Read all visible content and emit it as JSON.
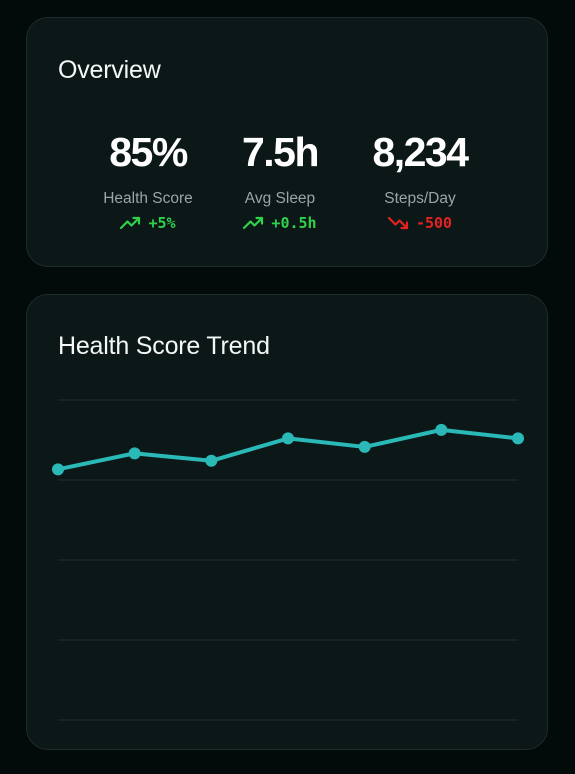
{
  "overview": {
    "title": "Overview",
    "stats": [
      {
        "value": "85%",
        "label": "Health Score",
        "change": "+5%",
        "direction": "up",
        "icon": "trend-up-icon"
      },
      {
        "value": "7.5h",
        "label": "Avg Sleep",
        "change": "+0.5h",
        "direction": "up",
        "icon": "trend-up-icon"
      },
      {
        "value": "8,234",
        "label": "Steps/Day",
        "change": "-500",
        "direction": "down",
        "icon": "trend-down-icon"
      }
    ]
  },
  "colors": {
    "background": "#030a0a",
    "card": "#0c1717",
    "line": "#2ab9b7",
    "positive": "#2fd24a",
    "negative": "#e52222",
    "grid": "#1f2b2b"
  },
  "trend": {
    "title": "Health Score Trend"
  },
  "chart_data": {
    "type": "line",
    "title": "Health Score Trend",
    "x": [
      1,
      2,
      3,
      4,
      5,
      6,
      7
    ],
    "series": [
      {
        "values": [
          83.5,
          85.0,
          84.3,
          86.4,
          85.6,
          87.2,
          86.4
        ]
      }
    ],
    "ylim": [
      60,
      90
    ],
    "grid": true,
    "gridlines": 5,
    "xlabel": "",
    "ylabel": "",
    "legend": "none"
  }
}
